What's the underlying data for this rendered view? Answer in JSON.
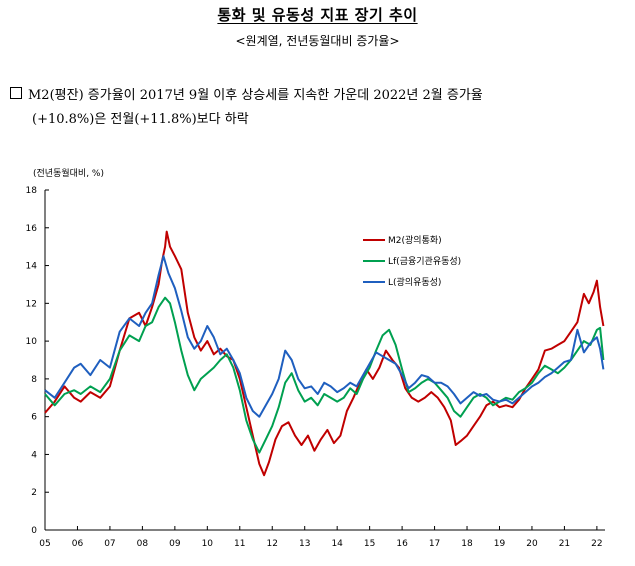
{
  "header": {
    "title": "통화 및 유동성 지표 장기 추이",
    "subtitle": "<원계열, 전년동월대비 증가율>"
  },
  "bullet": {
    "line1": "M2(평잔) 증가율이 2017년 9월 이후 상승세를 지속한 가운데 2022년 2월 증가율",
    "line2": "(+10.8%)은 전월(+11.8%)보다 하락"
  },
  "chart_data": {
    "type": "line",
    "ylabel": "(전년동월대비, %)",
    "ylim": [
      0,
      18
    ],
    "yticks": [
      0,
      2,
      4,
      6,
      8,
      10,
      12,
      14,
      16,
      18
    ],
    "xlim": [
      2005.0,
      2022.25
    ],
    "xtick_labels": [
      "05",
      "06",
      "07",
      "08",
      "09",
      "10",
      "11",
      "12",
      "13",
      "14",
      "15",
      "16",
      "17",
      "18",
      "19",
      "20",
      "21",
      "22"
    ],
    "legend_position": "top-right",
    "series": [
      {
        "name": "M2(광의통화)",
        "color": "#c00000",
        "points": [
          [
            2005.0,
            6.2
          ],
          [
            2005.3,
            6.8
          ],
          [
            2005.6,
            7.6
          ],
          [
            2005.9,
            7.0
          ],
          [
            2006.1,
            6.8
          ],
          [
            2006.4,
            7.3
          ],
          [
            2006.7,
            7.0
          ],
          [
            2007.0,
            7.6
          ],
          [
            2007.3,
            9.5
          ],
          [
            2007.6,
            11.2
          ],
          [
            2007.9,
            11.5
          ],
          [
            2008.1,
            10.8
          ],
          [
            2008.3,
            11.8
          ],
          [
            2008.5,
            13.0
          ],
          [
            2008.6,
            14.2
          ],
          [
            2008.7,
            15.0
          ],
          [
            2008.75,
            15.8
          ],
          [
            2008.85,
            15.0
          ],
          [
            2009.0,
            14.5
          ],
          [
            2009.2,
            13.8
          ],
          [
            2009.4,
            11.5
          ],
          [
            2009.6,
            10.2
          ],
          [
            2009.8,
            9.5
          ],
          [
            2010.0,
            10.0
          ],
          [
            2010.2,
            9.3
          ],
          [
            2010.4,
            9.6
          ],
          [
            2010.6,
            9.2
          ],
          [
            2010.8,
            9.0
          ],
          [
            2011.0,
            8.0
          ],
          [
            2011.2,
            6.5
          ],
          [
            2011.4,
            5.0
          ],
          [
            2011.6,
            3.5
          ],
          [
            2011.75,
            2.9
          ],
          [
            2011.9,
            3.6
          ],
          [
            2012.1,
            4.8
          ],
          [
            2012.3,
            5.5
          ],
          [
            2012.5,
            5.7
          ],
          [
            2012.7,
            5.0
          ],
          [
            2012.9,
            4.5
          ],
          [
            2013.1,
            5.0
          ],
          [
            2013.3,
            4.2
          ],
          [
            2013.5,
            4.8
          ],
          [
            2013.7,
            5.3
          ],
          [
            2013.9,
            4.6
          ],
          [
            2014.1,
            5.0
          ],
          [
            2014.3,
            6.3
          ],
          [
            2014.5,
            7.0
          ],
          [
            2014.7,
            7.8
          ],
          [
            2014.9,
            8.5
          ],
          [
            2015.1,
            8.0
          ],
          [
            2015.3,
            8.6
          ],
          [
            2015.5,
            9.5
          ],
          [
            2015.7,
            9.0
          ],
          [
            2015.9,
            8.6
          ],
          [
            2016.1,
            7.5
          ],
          [
            2016.3,
            7.0
          ],
          [
            2016.5,
            6.8
          ],
          [
            2016.7,
            7.0
          ],
          [
            2016.9,
            7.3
          ],
          [
            2017.1,
            7.0
          ],
          [
            2017.3,
            6.5
          ],
          [
            2017.5,
            5.8
          ],
          [
            2017.65,
            4.5
          ],
          [
            2017.8,
            4.7
          ],
          [
            2018.0,
            5.0
          ],
          [
            2018.2,
            5.5
          ],
          [
            2018.4,
            6.0
          ],
          [
            2018.6,
            6.6
          ],
          [
            2018.8,
            6.8
          ],
          [
            2019.0,
            6.5
          ],
          [
            2019.2,
            6.6
          ],
          [
            2019.4,
            6.5
          ],
          [
            2019.6,
            6.9
          ],
          [
            2019.8,
            7.5
          ],
          [
            2020.0,
            8.0
          ],
          [
            2020.2,
            8.5
          ],
          [
            2020.4,
            9.5
          ],
          [
            2020.6,
            9.6
          ],
          [
            2020.8,
            9.8
          ],
          [
            2021.0,
            10.0
          ],
          [
            2021.2,
            10.5
          ],
          [
            2021.4,
            11.0
          ],
          [
            2021.6,
            12.5
          ],
          [
            2021.75,
            12.0
          ],
          [
            2021.9,
            12.6
          ],
          [
            2022.0,
            13.2
          ],
          [
            2022.1,
            11.8
          ],
          [
            2022.2,
            10.8
          ]
        ]
      },
      {
        "name": "Lf(금융기관유동성)",
        "color": "#00a050",
        "points": [
          [
            2005.0,
            7.2
          ],
          [
            2005.3,
            6.6
          ],
          [
            2005.6,
            7.2
          ],
          [
            2005.9,
            7.4
          ],
          [
            2006.1,
            7.2
          ],
          [
            2006.4,
            7.6
          ],
          [
            2006.7,
            7.3
          ],
          [
            2007.0,
            8.0
          ],
          [
            2007.3,
            9.5
          ],
          [
            2007.6,
            10.3
          ],
          [
            2007.9,
            10.0
          ],
          [
            2008.1,
            10.8
          ],
          [
            2008.3,
            11.0
          ],
          [
            2008.5,
            11.8
          ],
          [
            2008.7,
            12.3
          ],
          [
            2008.85,
            12.0
          ],
          [
            2009.0,
            11.0
          ],
          [
            2009.2,
            9.5
          ],
          [
            2009.4,
            8.2
          ],
          [
            2009.6,
            7.4
          ],
          [
            2009.8,
            8.0
          ],
          [
            2010.0,
            8.3
          ],
          [
            2010.2,
            8.6
          ],
          [
            2010.4,
            9.0
          ],
          [
            2010.6,
            9.3
          ],
          [
            2010.8,
            8.6
          ],
          [
            2011.0,
            7.4
          ],
          [
            2011.2,
            5.8
          ],
          [
            2011.4,
            4.8
          ],
          [
            2011.6,
            4.1
          ],
          [
            2011.8,
            4.8
          ],
          [
            2012.0,
            5.5
          ],
          [
            2012.2,
            6.5
          ],
          [
            2012.4,
            7.8
          ],
          [
            2012.6,
            8.3
          ],
          [
            2012.8,
            7.4
          ],
          [
            2013.0,
            6.8
          ],
          [
            2013.2,
            7.0
          ],
          [
            2013.4,
            6.6
          ],
          [
            2013.6,
            7.2
          ],
          [
            2013.8,
            7.0
          ],
          [
            2014.0,
            6.8
          ],
          [
            2014.2,
            7.0
          ],
          [
            2014.4,
            7.5
          ],
          [
            2014.6,
            7.2
          ],
          [
            2014.8,
            8.0
          ],
          [
            2015.0,
            8.6
          ],
          [
            2015.2,
            9.5
          ],
          [
            2015.4,
            10.3
          ],
          [
            2015.6,
            10.6
          ],
          [
            2015.8,
            9.8
          ],
          [
            2016.0,
            8.5
          ],
          [
            2016.2,
            7.3
          ],
          [
            2016.4,
            7.5
          ],
          [
            2016.6,
            7.8
          ],
          [
            2016.8,
            8.0
          ],
          [
            2017.0,
            7.8
          ],
          [
            2017.2,
            7.4
          ],
          [
            2017.4,
            7.0
          ],
          [
            2017.6,
            6.3
          ],
          [
            2017.8,
            6.0
          ],
          [
            2018.0,
            6.5
          ],
          [
            2018.2,
            7.0
          ],
          [
            2018.4,
            7.2
          ],
          [
            2018.6,
            7.0
          ],
          [
            2018.8,
            6.6
          ],
          [
            2019.0,
            6.8
          ],
          [
            2019.2,
            7.0
          ],
          [
            2019.4,
            6.9
          ],
          [
            2019.6,
            7.3
          ],
          [
            2019.8,
            7.5
          ],
          [
            2020.0,
            7.8
          ],
          [
            2020.2,
            8.3
          ],
          [
            2020.4,
            8.7
          ],
          [
            2020.6,
            8.5
          ],
          [
            2020.8,
            8.3
          ],
          [
            2021.0,
            8.6
          ],
          [
            2021.2,
            9.0
          ],
          [
            2021.4,
            9.5
          ],
          [
            2021.6,
            10.0
          ],
          [
            2021.8,
            9.8
          ],
          [
            2022.0,
            10.6
          ],
          [
            2022.1,
            10.7
          ],
          [
            2022.2,
            9.0
          ]
        ]
      },
      {
        "name": "L(광의유동성)",
        "color": "#1f5fbf",
        "points": [
          [
            2005.0,
            7.4
          ],
          [
            2005.3,
            7.0
          ],
          [
            2005.6,
            7.8
          ],
          [
            2005.9,
            8.6
          ],
          [
            2006.1,
            8.8
          ],
          [
            2006.4,
            8.2
          ],
          [
            2006.7,
            9.0
          ],
          [
            2007.0,
            8.6
          ],
          [
            2007.3,
            10.5
          ],
          [
            2007.6,
            11.2
          ],
          [
            2007.9,
            10.8
          ],
          [
            2008.1,
            11.5
          ],
          [
            2008.3,
            12.0
          ],
          [
            2008.5,
            13.5
          ],
          [
            2008.65,
            14.5
          ],
          [
            2008.8,
            13.6
          ],
          [
            2009.0,
            12.8
          ],
          [
            2009.2,
            11.6
          ],
          [
            2009.4,
            10.2
          ],
          [
            2009.6,
            9.6
          ],
          [
            2009.8,
            10.0
          ],
          [
            2010.0,
            10.8
          ],
          [
            2010.2,
            10.2
          ],
          [
            2010.4,
            9.3
          ],
          [
            2010.6,
            9.6
          ],
          [
            2010.8,
            9.0
          ],
          [
            2011.0,
            8.3
          ],
          [
            2011.2,
            7.0
          ],
          [
            2011.4,
            6.3
          ],
          [
            2011.6,
            6.0
          ],
          [
            2011.8,
            6.6
          ],
          [
            2012.0,
            7.2
          ],
          [
            2012.2,
            8.0
          ],
          [
            2012.4,
            9.5
          ],
          [
            2012.6,
            9.0
          ],
          [
            2012.8,
            8.0
          ],
          [
            2013.0,
            7.5
          ],
          [
            2013.2,
            7.6
          ],
          [
            2013.4,
            7.2
          ],
          [
            2013.6,
            7.8
          ],
          [
            2013.8,
            7.6
          ],
          [
            2014.0,
            7.3
          ],
          [
            2014.2,
            7.5
          ],
          [
            2014.4,
            7.8
          ],
          [
            2014.6,
            7.6
          ],
          [
            2014.8,
            8.2
          ],
          [
            2015.0,
            8.8
          ],
          [
            2015.2,
            9.4
          ],
          [
            2015.4,
            9.2
          ],
          [
            2015.6,
            9.0
          ],
          [
            2015.8,
            8.8
          ],
          [
            2016.0,
            8.2
          ],
          [
            2016.2,
            7.5
          ],
          [
            2016.4,
            7.8
          ],
          [
            2016.6,
            8.2
          ],
          [
            2016.8,
            8.1
          ],
          [
            2017.0,
            7.8
          ],
          [
            2017.2,
            7.8
          ],
          [
            2017.4,
            7.6
          ],
          [
            2017.6,
            7.2
          ],
          [
            2017.8,
            6.7
          ],
          [
            2018.0,
            7.0
          ],
          [
            2018.2,
            7.3
          ],
          [
            2018.4,
            7.1
          ],
          [
            2018.6,
            7.2
          ],
          [
            2018.8,
            6.9
          ],
          [
            2019.0,
            6.8
          ],
          [
            2019.2,
            6.9
          ],
          [
            2019.4,
            6.7
          ],
          [
            2019.6,
            7.0
          ],
          [
            2019.8,
            7.3
          ],
          [
            2020.0,
            7.6
          ],
          [
            2020.2,
            7.8
          ],
          [
            2020.4,
            8.1
          ],
          [
            2020.6,
            8.3
          ],
          [
            2020.8,
            8.6
          ],
          [
            2021.0,
            8.9
          ],
          [
            2021.2,
            9.0
          ],
          [
            2021.4,
            10.6
          ],
          [
            2021.6,
            9.4
          ],
          [
            2021.8,
            9.9
          ],
          [
            2022.0,
            10.2
          ],
          [
            2022.1,
            9.6
          ],
          [
            2022.2,
            8.5
          ]
        ]
      }
    ]
  }
}
